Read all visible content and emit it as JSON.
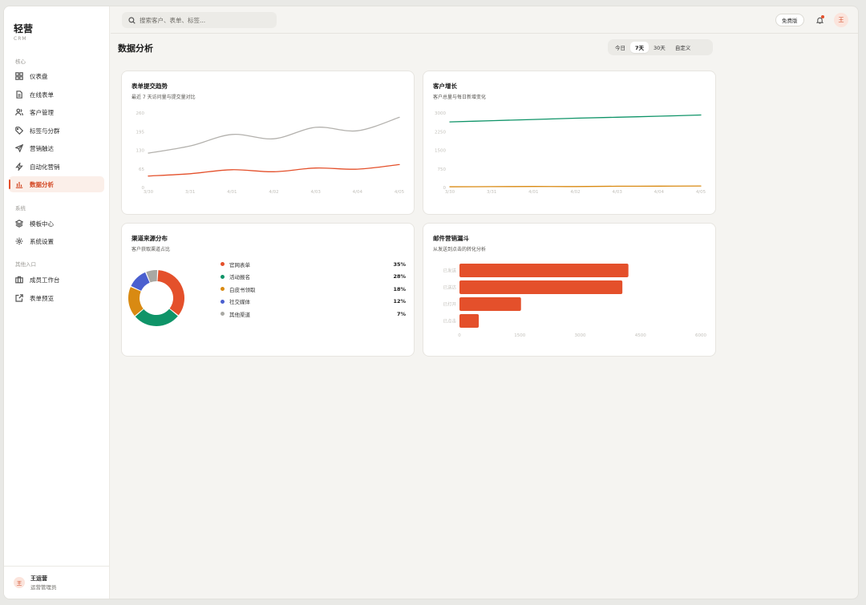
{
  "app": {
    "name": "轻营",
    "sub": "CRM"
  },
  "sidebar": {
    "sections": [
      {
        "label": "核心",
        "items": [
          {
            "label": "仪表盘",
            "icon": "dashboard-icon"
          },
          {
            "label": "在线表单",
            "icon": "form-icon"
          },
          {
            "label": "客户管理",
            "icon": "users-icon"
          },
          {
            "label": "标签与分群",
            "icon": "tag-icon"
          },
          {
            "label": "营销触达",
            "icon": "send-icon"
          },
          {
            "label": "自动化营销",
            "icon": "lightning-icon"
          },
          {
            "label": "数据分析",
            "icon": "bar-chart-icon",
            "active": true
          }
        ]
      },
      {
        "label": "系统",
        "items": [
          {
            "label": "模板中心",
            "icon": "layers-icon"
          },
          {
            "label": "系统设置",
            "icon": "gear-icon"
          }
        ]
      },
      {
        "label": "其他入口",
        "items": [
          {
            "label": "成员工作台",
            "icon": "briefcase-icon"
          },
          {
            "label": "表单预览",
            "icon": "external-link-icon"
          }
        ]
      }
    ],
    "user": {
      "avatar": "王",
      "name": "王运营",
      "role": "运营管理员"
    }
  },
  "header": {
    "search_placeholder": "搜索客户、表单、标签...",
    "plan": "免费版",
    "avatar": "王"
  },
  "main": {
    "title": "数据分析",
    "range_tabs": [
      "今日",
      "7天",
      "30天",
      "自定义"
    ],
    "active_range": "7天"
  },
  "cards": {
    "trend": {
      "title": "表单提交趋势",
      "sub": "最近 7 天访问量与提交量对比"
    },
    "growth": {
      "title": "客户增长",
      "sub": "客户总量与每日新增变化"
    },
    "channel": {
      "title": "渠道来源分布",
      "sub": "客户获取渠道占比"
    },
    "funnel": {
      "title": "邮件营销漏斗",
      "sub": "从发送到点击的转化分析"
    }
  },
  "colors": {
    "accent": "#e4502b",
    "green": "#0f9468",
    "amber": "#d98a12",
    "blue": "#4a5fcf",
    "gray": "#a9a8a3",
    "visit": "#b3b1ad"
  },
  "chart_data": [
    {
      "type": "line",
      "title": "表单提交趋势",
      "x": [
        "3/30",
        "3/31",
        "4/01",
        "4/02",
        "4/03",
        "4/04",
        "4/05"
      ],
      "yticks": [
        0,
        65,
        130,
        195,
        260
      ],
      "ylim": [
        0,
        260
      ],
      "series": [
        {
          "values": [
            120,
            145,
            185,
            170,
            210,
            198,
            245
          ],
          "color": "#b3b1ad"
        },
        {
          "values": [
            40,
            48,
            62,
            55,
            68,
            64,
            80
          ],
          "color": "#e4502b"
        }
      ]
    },
    {
      "type": "line",
      "title": "客户增长",
      "x": [
        "3/30",
        "3/31",
        "4/01",
        "4/02",
        "4/03",
        "4/04",
        "4/05"
      ],
      "yticks": [
        0,
        750,
        1500,
        2250,
        3000
      ],
      "ylim": [
        0,
        3000
      ],
      "series": [
        {
          "values": [
            2640,
            2690,
            2740,
            2790,
            2830,
            2870,
            2920
          ],
          "color": "#0f9468"
        },
        {
          "values": [
            30,
            35,
            42,
            38,
            50,
            55,
            60
          ],
          "color": "#d98a12"
        }
      ]
    },
    {
      "type": "pie",
      "title": "渠道来源分布",
      "slices": [
        {
          "label": "官网表单",
          "value": 35,
          "display": "35%",
          "color": "#e4502b"
        },
        {
          "label": "活动报名",
          "value": 28,
          "display": "28%",
          "color": "#0f9468"
        },
        {
          "label": "白皮书领取",
          "value": 18,
          "display": "18%",
          "color": "#d98a12"
        },
        {
          "label": "社交媒体",
          "value": 12,
          "display": "12%",
          "color": "#4a5fcf"
        },
        {
          "label": "其他渠道",
          "value": 7,
          "display": "7%",
          "color": "#a9a8a3"
        }
      ]
    },
    {
      "type": "bar",
      "title": "邮件营销漏斗",
      "categories": [
        "已发送",
        "已送达",
        "已打开",
        "已点击"
      ],
      "values": [
        4200,
        4050,
        1530,
        480
      ],
      "xticks": [
        0,
        1500,
        3000,
        4500,
        6000
      ],
      "xlim": [
        0,
        6000
      ],
      "color": "#e4502b"
    }
  ]
}
